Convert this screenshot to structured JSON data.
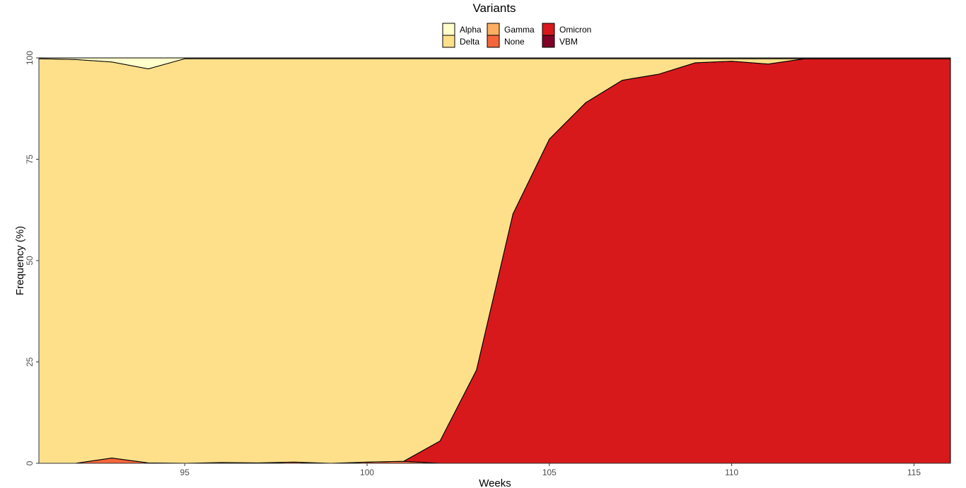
{
  "chart_data": {
    "type": "area",
    "stacked": true,
    "percent": true,
    "xlabel": "Weeks",
    "ylabel": "Frequency (%)",
    "xlim": [
      91,
      116
    ],
    "ylim": [
      0,
      100
    ],
    "x_ticks": [
      95,
      100,
      105,
      110,
      115
    ],
    "y_ticks": [
      0,
      25,
      50,
      75,
      100
    ],
    "legend": {
      "title": "Variants",
      "placement": "top",
      "entries": [
        {
          "name": "Alpha",
          "color": "#FFFFCC"
        },
        {
          "name": "Delta",
          "color": "#FEE08B"
        },
        {
          "name": "Gamma",
          "color": "#FDAE61"
        },
        {
          "name": "None",
          "color": "#F4663A"
        },
        {
          "name": "Omicron",
          "color": "#D7191C"
        },
        {
          "name": "VBM",
          "color": "#800026"
        }
      ]
    },
    "x": [
      91,
      92,
      93,
      94,
      95,
      96,
      97,
      98,
      99,
      100,
      101,
      102,
      103,
      104,
      105,
      106,
      107,
      108,
      109,
      110,
      111,
      112,
      113,
      114,
      115,
      116
    ],
    "series": [
      {
        "name": "None",
        "color": "#F4663A",
        "values": [
          0,
          0,
          1.3,
          0.1,
          0,
          0.2,
          0.1,
          0.3,
          0,
          0.3,
          0.5,
          0,
          0,
          0,
          0,
          0,
          0,
          0,
          0,
          0,
          0,
          0,
          0,
          0,
          0,
          0
        ]
      },
      {
        "name": "Omicron",
        "color": "#D7191C",
        "values": [
          0,
          0,
          0,
          0,
          0,
          0,
          0,
          0,
          0,
          0,
          0,
          5.5,
          23,
          61.5,
          80,
          89,
          94.5,
          96,
          98.8,
          99.2,
          98.5,
          99.8,
          99.8,
          99.8,
          99.8,
          99.8
        ]
      },
      {
        "name": "VBM",
        "color": "#800026",
        "values": [
          0,
          0,
          0,
          0,
          0,
          0,
          0,
          0,
          0,
          0,
          0,
          0,
          0,
          0,
          0,
          0,
          0,
          0,
          0,
          0,
          0,
          0,
          0,
          0,
          0,
          0
        ]
      },
      {
        "name": "Gamma",
        "color": "#FDAE61",
        "values": [
          0,
          0,
          0,
          0,
          0,
          0,
          0,
          0,
          0,
          0,
          0,
          0,
          0,
          0,
          0,
          0,
          0,
          0,
          0,
          0,
          0,
          0,
          0,
          0,
          0,
          0
        ]
      },
      {
        "name": "Delta",
        "color": "#FEE08B",
        "values": [
          99.8,
          99.6,
          97.7,
          97.2,
          99.8,
          99.6,
          99.7,
          99.5,
          99.8,
          99.5,
          99.3,
          94.3,
          76.8,
          38.3,
          19.8,
          10.8,
          5.3,
          3.8,
          1,
          0.6,
          1.3,
          0,
          0,
          0,
          0,
          0
        ]
      },
      {
        "name": "Alpha",
        "color": "#FFFFCC",
        "values": [
          0.2,
          0.4,
          1,
          2.7,
          0.2,
          0.2,
          0.2,
          0.2,
          0.2,
          0.2,
          0.2,
          0.2,
          0.2,
          0.2,
          0.2,
          0.2,
          0.2,
          0.2,
          0.2,
          0.2,
          0.2,
          0.2,
          0.2,
          0.2,
          0.2,
          0.2
        ]
      }
    ]
  }
}
